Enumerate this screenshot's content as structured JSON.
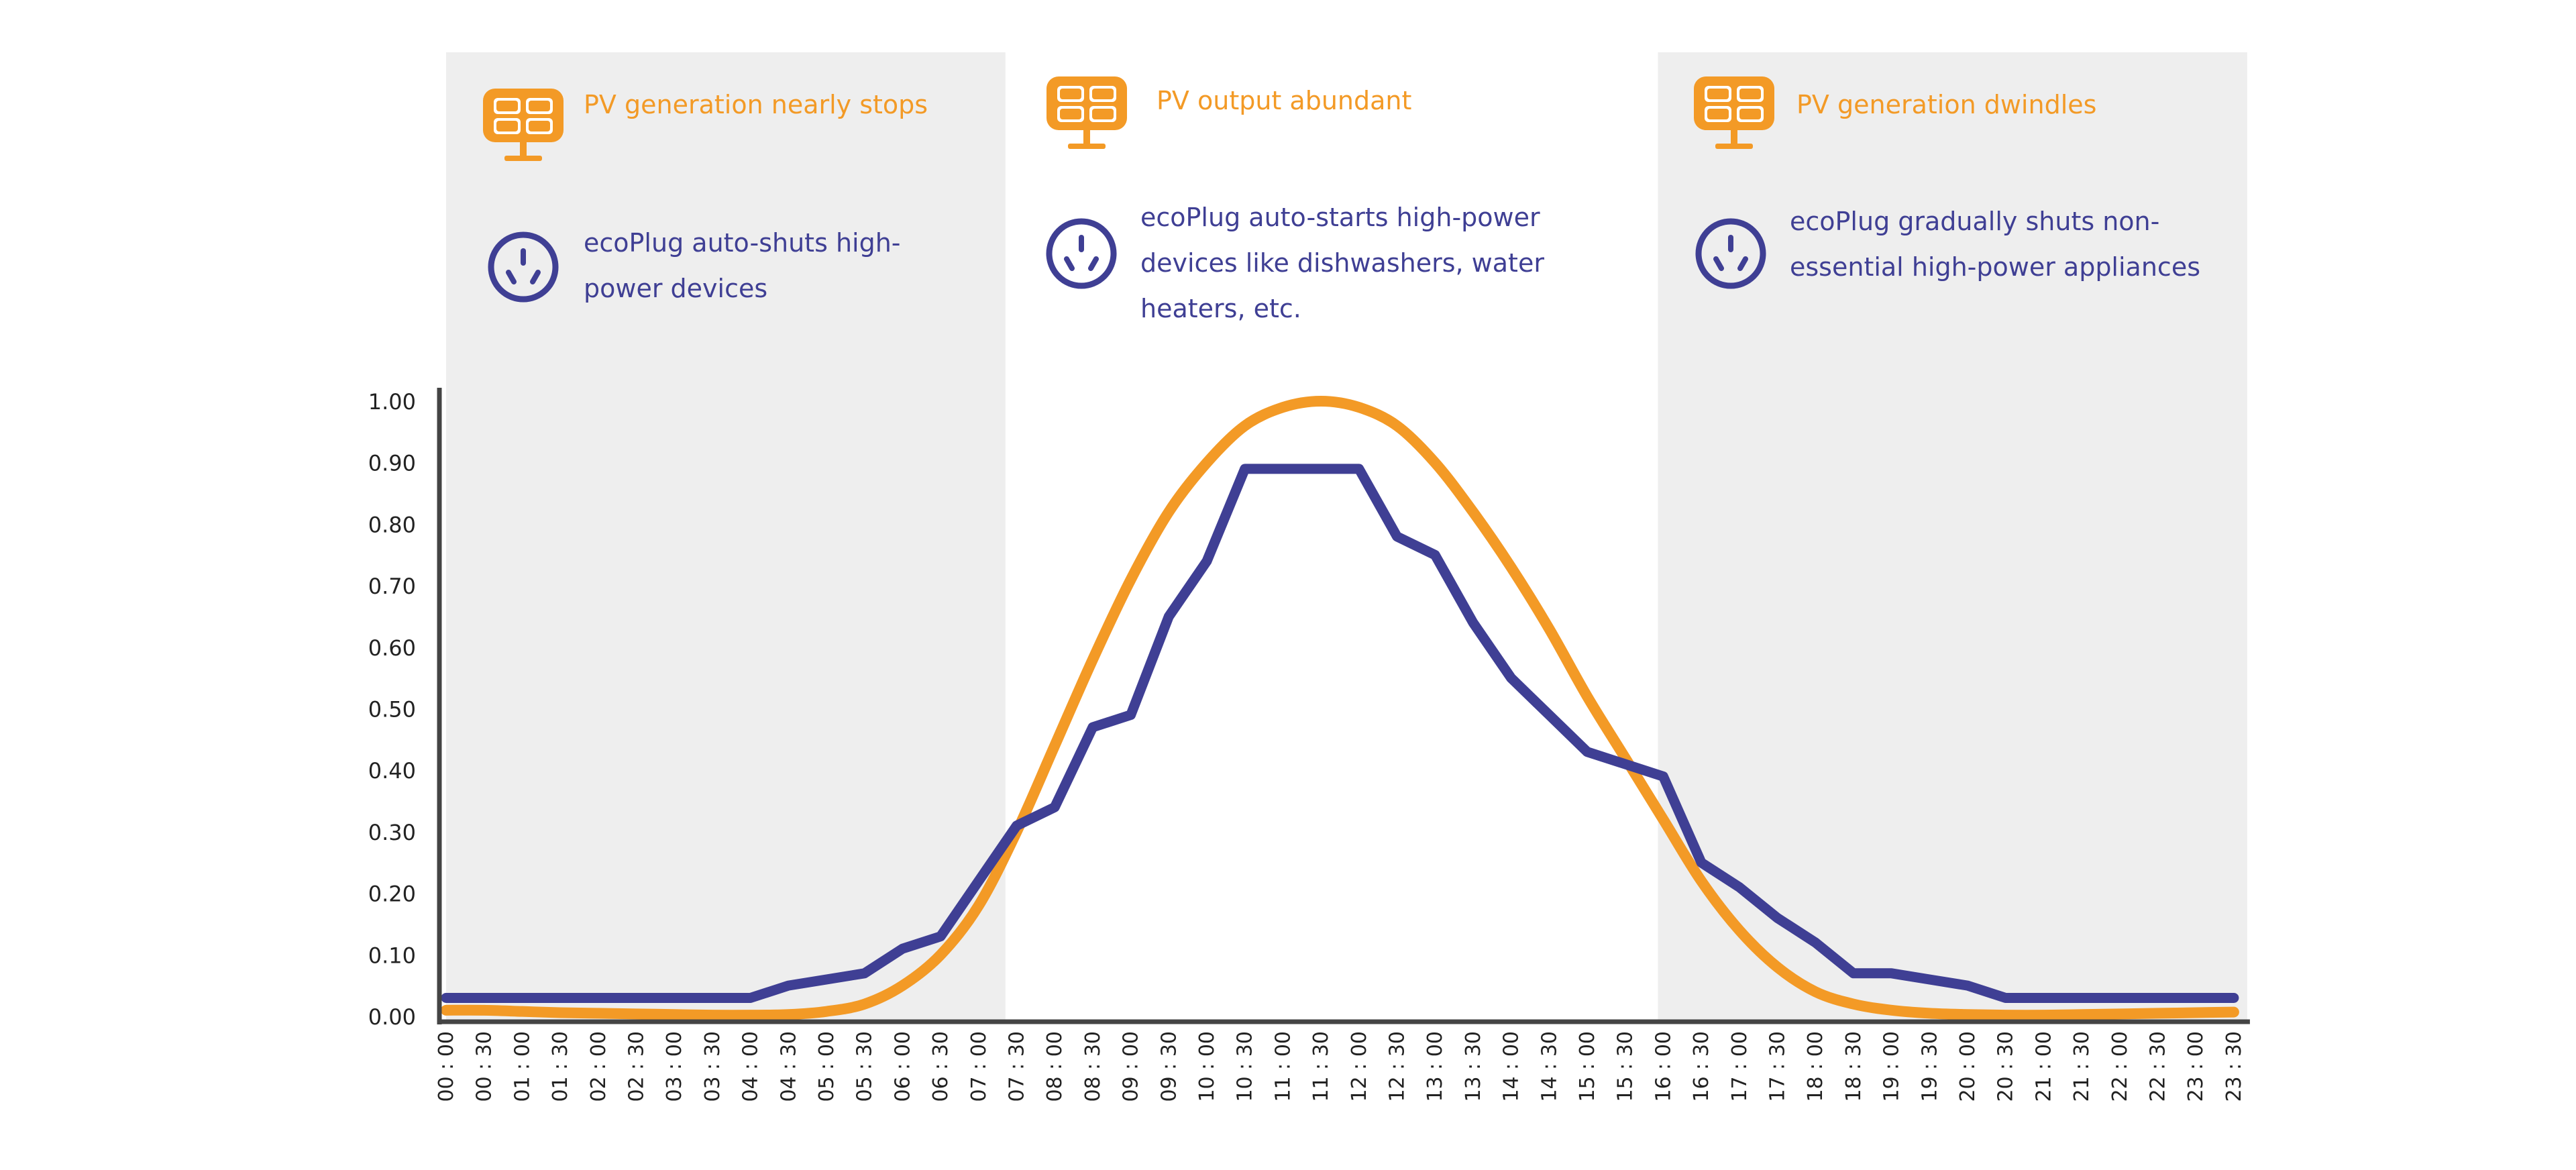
{
  "colors": {
    "pv": "#f39a26",
    "consumption": "#3f3f94",
    "axis": "#444444",
    "zone_bg": "#eeeeee",
    "text": "#222222"
  },
  "icons": {
    "pv": "solar-panel-icon",
    "plug": "power-outlet-icon"
  },
  "zones": [
    {
      "pv_label": "PV generation nearly stops",
      "plug_label": "ecoPlug auto-shuts high-power devices"
    },
    {
      "pv_label": "PV output abundant",
      "plug_label": "ecoPlug auto-starts high-power devices like dishwashers, water heaters, etc."
    },
    {
      "pv_label": "PV generation dwindles",
      "plug_label": "ecoPlug gradually shuts non-essential high-power appliances"
    }
  ],
  "chart_data": {
    "type": "line",
    "ylim": [
      0,
      1
    ],
    "yticks": [
      "0.00",
      "0.10",
      "0.20",
      "0.30",
      "0.40",
      "0.50",
      "0.60",
      "0.70",
      "0.80",
      "0.90",
      "1.00"
    ],
    "x": [
      "00 : 00",
      "00 : 30",
      "01 : 00",
      "01 : 30",
      "02 : 00",
      "02 : 30",
      "03 : 00",
      "03 : 30",
      "04 : 00",
      "04 : 30",
      "05 : 00",
      "05 : 30",
      "06 : 00",
      "06 : 30",
      "07 : 00",
      "07 : 30",
      "08 : 00",
      "08 : 30",
      "09 : 00",
      "09 : 30",
      "10 : 00",
      "10 : 30",
      "11 : 00",
      "11 : 30",
      "12 : 00",
      "12 : 30",
      "13 : 00",
      "13 : 30",
      "14 : 00",
      "14 : 30",
      "15 : 00",
      "15 : 30",
      "16 : 00",
      "16 : 30",
      "17 : 00",
      "17 : 30",
      "18 : 00",
      "18 : 30",
      "19 : 00",
      "19 : 30",
      "20 : 00",
      "20 : 30",
      "21 : 00",
      "21 : 30",
      "22 : 00",
      "22 : 30",
      "23 : 00",
      "23 : 30"
    ],
    "shaded_ranges": [
      [
        "00 : 00",
        "07 : 00"
      ],
      [
        "16 : 00",
        "23 : 30"
      ]
    ],
    "series": [
      {
        "key": "pv",
        "values": [
          0.01,
          0.01,
          0.008,
          0.006,
          0.005,
          0.004,
          0.003,
          0.002,
          0.002,
          0.003,
          0.008,
          0.02,
          0.05,
          0.1,
          0.18,
          0.3,
          0.44,
          0.58,
          0.71,
          0.82,
          0.9,
          0.96,
          0.99,
          1.0,
          0.99,
          0.96,
          0.9,
          0.82,
          0.73,
          0.63,
          0.52,
          0.42,
          0.32,
          0.22,
          0.14,
          0.08,
          0.04,
          0.02,
          0.01,
          0.005,
          0.003,
          0.002,
          0.002,
          0.003,
          0.004,
          0.005,
          0.006,
          0.007
        ]
      },
      {
        "key": "consumption",
        "values": [
          0.03,
          0.03,
          0.03,
          0.03,
          0.03,
          0.03,
          0.03,
          0.03,
          0.03,
          0.05,
          0.06,
          0.07,
          0.11,
          0.13,
          0.22,
          0.31,
          0.34,
          0.47,
          0.49,
          0.65,
          0.74,
          0.89,
          0.89,
          0.89,
          0.89,
          0.78,
          0.75,
          0.64,
          0.55,
          0.49,
          0.43,
          0.41,
          0.39,
          0.25,
          0.21,
          0.16,
          0.12,
          0.07,
          0.07,
          0.06,
          0.05,
          0.03,
          0.03,
          0.03,
          0.03,
          0.03,
          0.03,
          0.03
        ]
      }
    ]
  }
}
